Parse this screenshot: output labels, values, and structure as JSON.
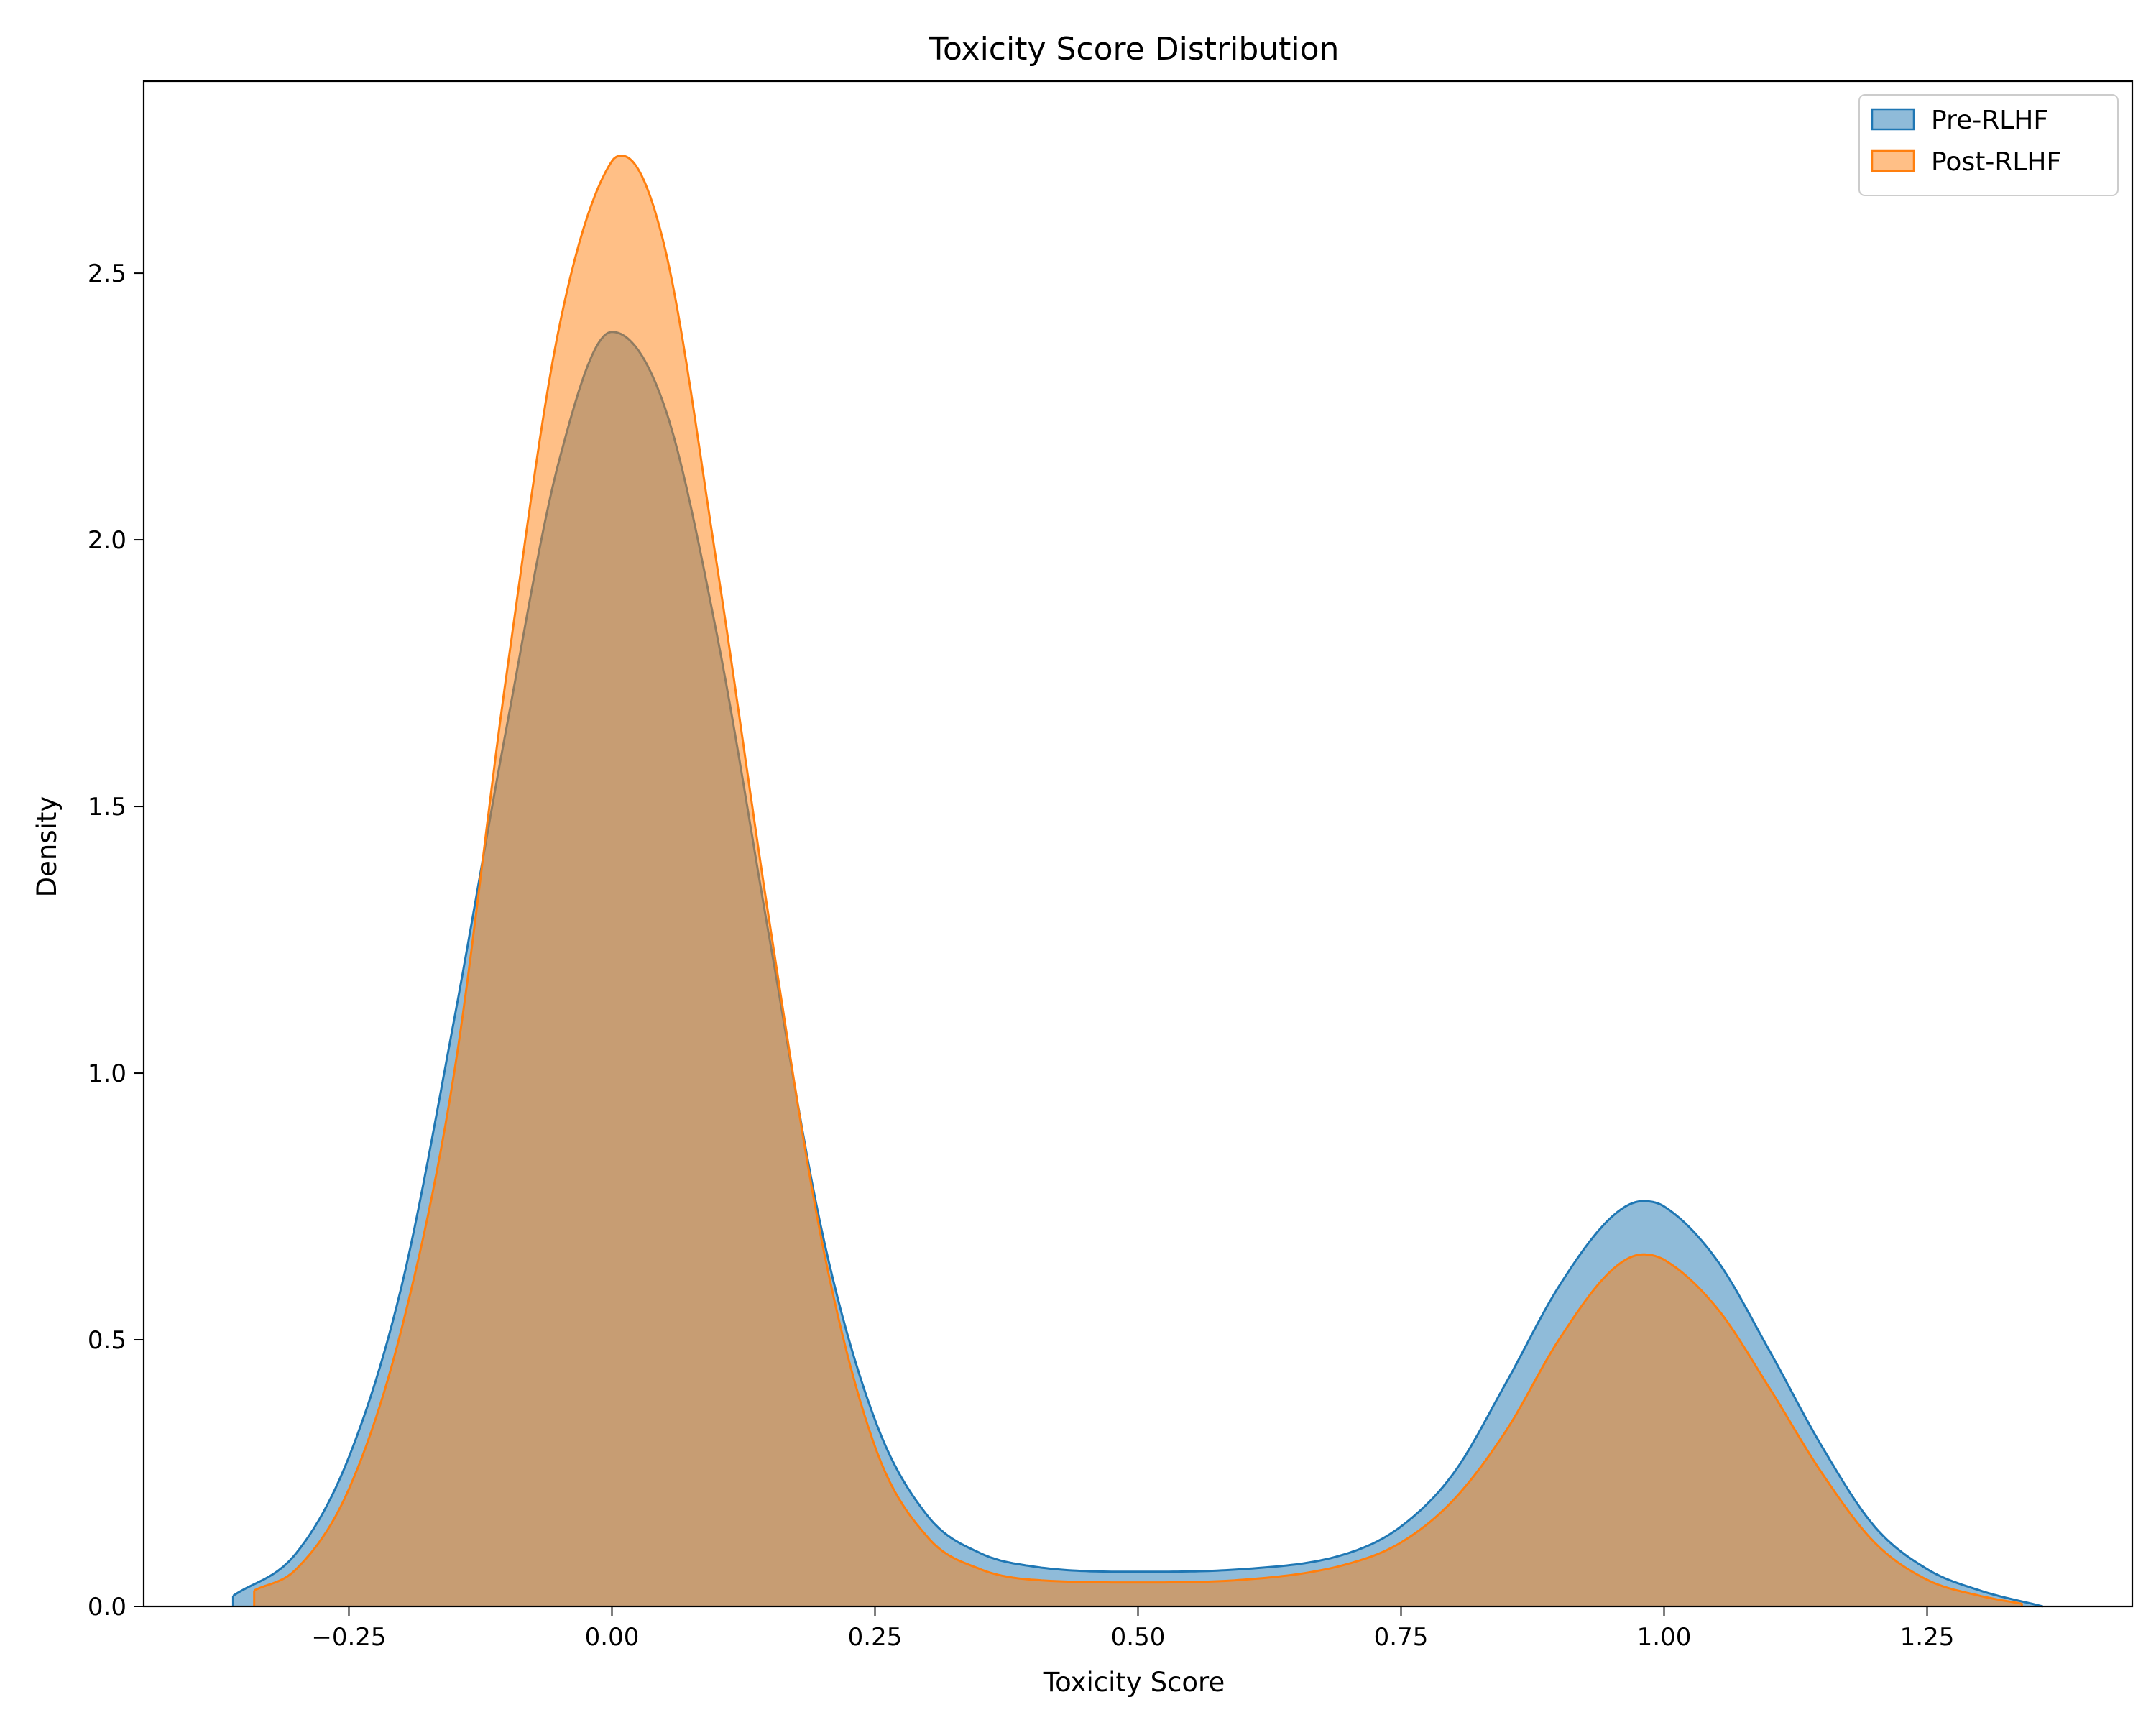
{
  "chart_data": {
    "type": "area",
    "title": "Toxicity Score Distribution",
    "xlabel": "Toxicity Score",
    "ylabel": "Density",
    "xlim": [
      -0.445,
      1.445
    ],
    "ylim": [
      0,
      2.86
    ],
    "x_ticks": [
      -0.25,
      0.0,
      0.25,
      0.5,
      0.75,
      1.0,
      1.25
    ],
    "x_tick_labels": [
      "−0.25",
      "0.00",
      "0.25",
      "0.50",
      "0.75",
      "1.00",
      "1.25"
    ],
    "y_ticks": [
      0.0,
      0.5,
      1.0,
      1.5,
      2.0,
      2.5
    ],
    "y_tick_labels": [
      "0.0",
      "0.5",
      "1.0",
      "1.5",
      "2.0",
      "2.5"
    ],
    "grid": false,
    "legend": {
      "position": "top-right"
    },
    "series": [
      {
        "name": "Pre-RLHF",
        "color": "#1f77b4",
        "fill_opacity": 0.5,
        "x": [
          -0.36,
          -0.3,
          -0.25,
          -0.2,
          -0.15,
          -0.1,
          -0.05,
          0.0,
          0.05,
          0.1,
          0.15,
          0.2,
          0.25,
          0.3,
          0.35,
          0.4,
          0.5,
          0.6,
          0.7,
          0.75,
          0.8,
          0.85,
          0.9,
          0.95,
          0.98,
          1.0,
          1.05,
          1.1,
          1.15,
          1.2,
          1.25,
          1.3,
          1.36
        ],
        "y": [
          0.02,
          0.1,
          0.28,
          0.6,
          1.1,
          1.65,
          2.15,
          2.39,
          2.25,
          1.82,
          1.25,
          0.7,
          0.35,
          0.17,
          0.1,
          0.075,
          0.065,
          0.07,
          0.1,
          0.15,
          0.25,
          0.42,
          0.6,
          0.73,
          0.76,
          0.75,
          0.65,
          0.48,
          0.3,
          0.15,
          0.07,
          0.03,
          0.0
        ]
      },
      {
        "name": "Post-RLHF",
        "color": "#ff7f0e",
        "fill_opacity": 0.5,
        "x": [
          -0.34,
          -0.3,
          -0.25,
          -0.2,
          -0.15,
          -0.1,
          -0.05,
          0.0,
          0.01,
          0.05,
          0.1,
          0.15,
          0.2,
          0.25,
          0.3,
          0.35,
          0.4,
          0.5,
          0.6,
          0.7,
          0.75,
          0.8,
          0.85,
          0.9,
          0.95,
          0.98,
          1.0,
          1.05,
          1.1,
          1.15,
          1.2,
          1.25,
          1.3,
          1.34
        ],
        "y": [
          0.03,
          0.07,
          0.22,
          0.52,
          1.0,
          1.75,
          2.4,
          2.71,
          2.72,
          2.55,
          1.95,
          1.28,
          0.68,
          0.3,
          0.13,
          0.07,
          0.05,
          0.045,
          0.05,
          0.08,
          0.12,
          0.2,
          0.33,
          0.5,
          0.63,
          0.66,
          0.65,
          0.56,
          0.41,
          0.25,
          0.12,
          0.05,
          0.02,
          0.005
        ]
      }
    ]
  }
}
